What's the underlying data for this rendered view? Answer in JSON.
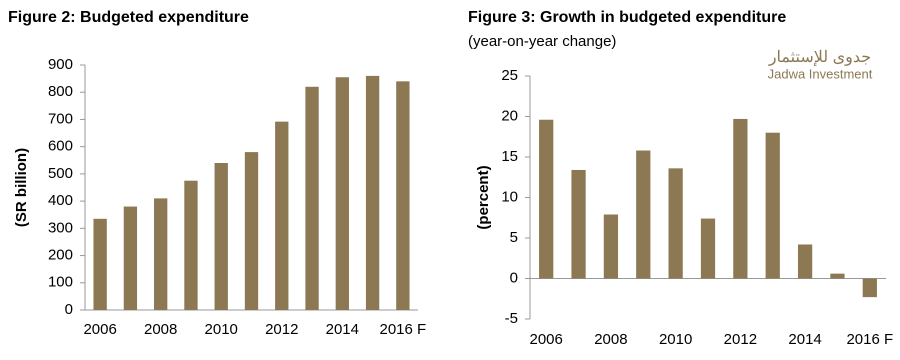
{
  "chart_data": [
    {
      "type": "bar",
      "title": "Figure 2: Budgeted expenditure",
      "y_label": "(SR billion)",
      "categories": [
        "2006",
        null,
        "2008",
        null,
        "2010",
        null,
        "2012",
        null,
        "2014",
        null,
        "2016 F"
      ],
      "values": [
        335,
        380,
        410,
        475,
        540,
        580,
        692,
        820,
        855,
        860,
        840
      ],
      "color": "#8c7853",
      "ylim": [
        0,
        900
      ],
      "yticks": [
        0,
        100,
        200,
        300,
        400,
        500,
        600,
        700,
        800,
        900
      ]
    },
    {
      "type": "bar",
      "title": "Figure 3: Growth in budgeted expenditure",
      "subtitle": "(year-on-year change)",
      "y_label": "(percent)",
      "categories": [
        "2006",
        null,
        "2008",
        null,
        "2010",
        null,
        "2012",
        null,
        "2014",
        null,
        "2016 F"
      ],
      "values": [
        19.6,
        13.4,
        7.9,
        15.8,
        13.6,
        7.4,
        19.7,
        18.0,
        4.2,
        0.6,
        -2.3
      ],
      "color": "#8c7853",
      "ylim": [
        -5,
        25
      ],
      "yticks": [
        -5,
        0,
        5,
        10,
        15,
        20,
        25
      ]
    }
  ],
  "logo": {
    "arabic": "جدوى للإستثمار",
    "english": "Jadwa Investment"
  }
}
